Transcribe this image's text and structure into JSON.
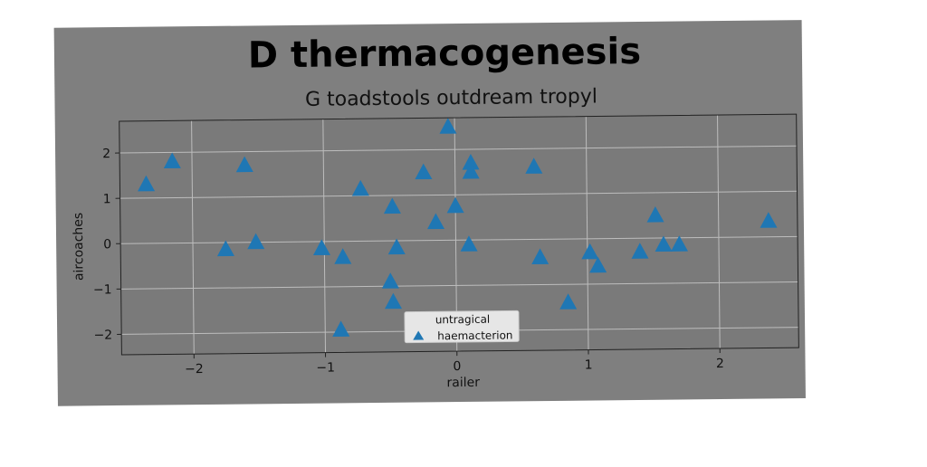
{
  "colors": {
    "figure_background": "#7f7f7f",
    "plot_background": "#7a7a7a",
    "grid": "#bdbdbd",
    "marker": "#1f77b4",
    "legend_background": "#e6e6e6"
  },
  "chart_data": {
    "type": "scatter",
    "title": "D thermacogenesis",
    "subtitle": "G toadstools outdream tropyl",
    "xlabel": "railer",
    "ylabel": "aircoaches",
    "xlim": [
      -2.55,
      2.6
    ],
    "ylim": [
      -2.45,
      2.7
    ],
    "xticks": [
      -2,
      -1,
      0,
      1,
      2
    ],
    "xtick_labels": [
      "−2",
      "−1",
      "0",
      "1",
      "2"
    ],
    "yticks": [
      -2,
      -1,
      0,
      1,
      2
    ],
    "ytick_labels": [
      "−2",
      "−1",
      "0",
      "1",
      "2"
    ],
    "grid": true,
    "marker": "triangle",
    "legend": {
      "placement": "lower-center",
      "title": "untragical",
      "entries": [
        "haemacterion"
      ]
    },
    "series": [
      {
        "name": "haemacterion",
        "points": [
          [
            -2.35,
            1.3
          ],
          [
            -2.15,
            1.8
          ],
          [
            -1.6,
            1.7
          ],
          [
            -1.75,
            -0.15
          ],
          [
            -1.52,
            0.0
          ],
          [
            -1.02,
            -0.15
          ],
          [
            -0.86,
            -0.35
          ],
          [
            -0.88,
            -1.95
          ],
          [
            -0.72,
            1.15
          ],
          [
            -0.48,
            0.75
          ],
          [
            -0.45,
            -0.15
          ],
          [
            -0.5,
            -0.9
          ],
          [
            -0.48,
            -1.35
          ],
          [
            -0.24,
            1.5
          ],
          [
            -0.15,
            0.4
          ],
          [
            0.0,
            0.75
          ],
          [
            -0.05,
            2.5
          ],
          [
            0.12,
            1.7
          ],
          [
            0.12,
            1.5
          ],
          [
            0.1,
            -0.1
          ],
          [
            0.2,
            -2.05
          ],
          [
            0.6,
            1.6
          ],
          [
            0.64,
            -0.4
          ],
          [
            0.85,
            -1.4
          ],
          [
            1.02,
            -0.3
          ],
          [
            1.08,
            -0.6
          ],
          [
            1.4,
            -0.3
          ],
          [
            1.52,
            0.5
          ],
          [
            1.58,
            -0.15
          ],
          [
            1.7,
            -0.15
          ],
          [
            2.38,
            0.35
          ]
        ]
      }
    ]
  }
}
